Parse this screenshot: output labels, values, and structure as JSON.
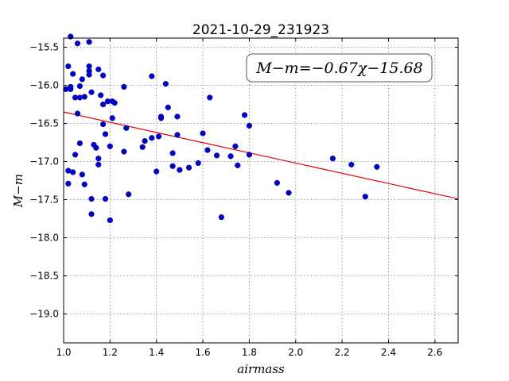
{
  "chart_data": {
    "type": "scatter",
    "title": "2021-10-29_231923",
    "xlabel": "airmass",
    "ylabel": "M−m",
    "xlim": [
      1.0,
      2.7
    ],
    "ylim": [
      -19.38,
      -15.38
    ],
    "y_inverted": true,
    "grid": true,
    "xticks": [
      "1.0",
      "1.2",
      "1.4",
      "1.6",
      "1.8",
      "2.0",
      "2.2",
      "2.4",
      "2.6"
    ],
    "yticks": [
      "−15.5",
      "−16.0",
      "−16.5",
      "−17.0",
      "−17.5",
      "−18.0",
      "−18.5",
      "−19.0"
    ],
    "annotation": "M−m=−0.67χ−15.68",
    "annotation_placement": "top-right",
    "fit": {
      "slope": -0.67,
      "intercept": -15.68,
      "color": "#e00000"
    },
    "marker_color": "#0000cc",
    "points": [
      [
        1.01,
        -16.05
      ],
      [
        1.02,
        -15.75
      ],
      [
        1.03,
        -16.05
      ],
      [
        1.03,
        -16.02
      ],
      [
        1.03,
        -15.36
      ],
      [
        1.04,
        -15.85
      ],
      [
        1.05,
        -16.16
      ],
      [
        1.06,
        -15.45
      ],
      [
        1.06,
        -16.37
      ],
      [
        1.07,
        -16.16
      ],
      [
        1.07,
        -16.01
      ],
      [
        1.08,
        -15.92
      ],
      [
        1.09,
        -16.15
      ],
      [
        1.11,
        -15.43
      ],
      [
        1.11,
        -15.75
      ],
      [
        1.11,
        -15.81
      ],
      [
        1.11,
        -15.86
      ],
      [
        1.12,
        -16.09
      ],
      [
        1.15,
        -15.79
      ],
      [
        1.16,
        -16.13
      ],
      [
        1.17,
        -15.87
      ],
      [
        1.17,
        -16.25
      ],
      [
        1.19,
        -16.21
      ],
      [
        1.21,
        -16.43
      ],
      [
        1.21,
        -16.21
      ],
      [
        1.22,
        -16.23
      ],
      [
        1.26,
        -16.02
      ],
      [
        1.27,
        -16.56
      ],
      [
        1.02,
        -17.29
      ],
      [
        1.02,
        -17.12
      ],
      [
        1.04,
        -17.14
      ],
      [
        1.05,
        -16.91
      ],
      [
        1.07,
        -16.76
      ],
      [
        1.08,
        -17.17
      ],
      [
        1.09,
        -17.3
      ],
      [
        1.12,
        -17.49
      ],
      [
        1.12,
        -17.69
      ],
      [
        1.13,
        -16.78
      ],
      [
        1.14,
        -16.82
      ],
      [
        1.15,
        -16.96
      ],
      [
        1.15,
        -17.04
      ],
      [
        1.17,
        -16.51
      ],
      [
        1.18,
        -16.64
      ],
      [
        1.18,
        -17.49
      ],
      [
        1.2,
        -16.8
      ],
      [
        1.2,
        -17.77
      ],
      [
        1.26,
        -16.87
      ],
      [
        1.28,
        -17.43
      ],
      [
        1.34,
        -16.81
      ],
      [
        1.35,
        -16.73
      ],
      [
        1.38,
        -15.88
      ],
      [
        1.38,
        -16.69
      ],
      [
        1.4,
        -17.13
      ],
      [
        1.41,
        -16.67
      ],
      [
        1.42,
        -16.43
      ],
      [
        1.42,
        -16.41
      ],
      [
        1.44,
        -15.98
      ],
      [
        1.45,
        -16.29
      ],
      [
        1.47,
        -16.89
      ],
      [
        1.47,
        -17.06
      ],
      [
        1.49,
        -16.41
      ],
      [
        1.49,
        -16.65
      ],
      [
        1.5,
        -17.11
      ],
      [
        1.54,
        -17.08
      ],
      [
        1.58,
        -17.02
      ],
      [
        1.6,
        -16.63
      ],
      [
        1.62,
        -16.85
      ],
      [
        1.63,
        -16.16
      ],
      [
        1.66,
        -16.92
      ],
      [
        1.68,
        -17.73
      ],
      [
        1.72,
        -16.93
      ],
      [
        1.74,
        -16.8
      ],
      [
        1.75,
        -17.05
      ],
      [
        1.78,
        -16.39
      ],
      [
        1.8,
        -16.91
      ],
      [
        1.8,
        -16.53
      ],
      [
        1.92,
        -17.28
      ],
      [
        1.97,
        -17.41
      ],
      [
        2.16,
        -16.96
      ],
      [
        2.24,
        -17.04
      ],
      [
        2.3,
        -17.46
      ],
      [
        2.35,
        -17.07
      ]
    ]
  }
}
